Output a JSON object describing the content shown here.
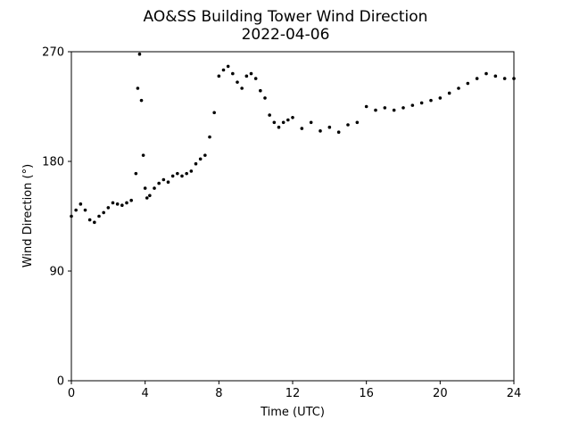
{
  "chart_data": {
    "type": "scatter",
    "title": "AO&SS Building Tower Wind Direction",
    "subtitle": "2022-04-06",
    "xlabel": "Time (UTC)",
    "ylabel": "Wind Direction (°)",
    "xlim": [
      0,
      24
    ],
    "ylim": [
      0,
      270
    ],
    "xticks": [
      0,
      4,
      8,
      12,
      16,
      20,
      24
    ],
    "yticks": [
      0,
      90,
      180,
      270
    ],
    "grid": false,
    "marker_color": "#000000",
    "series": [
      {
        "x": [
          0,
          0.25,
          0.5,
          0.75,
          1,
          1.25,
          1.5,
          1.75,
          2,
          2.25,
          2.5,
          2.75,
          3,
          3.25,
          3.5,
          3.6,
          3.7,
          3.8,
          3.9,
          4,
          4.1,
          4.25,
          4.5,
          4.75,
          5,
          5.25,
          5.5,
          5.75,
          6,
          6.25,
          6.5,
          6.75,
          7,
          7.25,
          7.5,
          7.75,
          8,
          8.25,
          8.5,
          8.75,
          9,
          9.25,
          9.5,
          9.75,
          10,
          10.25,
          10.5,
          10.75,
          11,
          11.25,
          11.5,
          11.75,
          12,
          12.5,
          13,
          13.5,
          14,
          14.5,
          15,
          15.5,
          16,
          16.5,
          17,
          17.5,
          18,
          18.5,
          19,
          19.5,
          20,
          20.5,
          21,
          21.5,
          22,
          22.5,
          23,
          23.5,
          24
        ],
        "y": [
          135,
          140,
          145,
          140,
          132,
          130,
          135,
          138,
          142,
          146,
          145,
          144,
          146,
          148,
          170,
          240,
          268,
          230,
          185,
          158,
          150,
          152,
          158,
          162,
          165,
          163,
          168,
          170,
          168,
          170,
          172,
          178,
          182,
          185,
          200,
          220,
          250,
          255,
          258,
          252,
          245,
          240,
          250,
          252,
          248,
          238,
          232,
          218,
          212,
          208,
          212,
          214,
          216,
          207,
          212,
          205,
          208,
          204,
          210,
          212,
          225,
          222,
          224,
          222,
          224,
          226,
          228,
          230,
          232,
          236,
          240,
          244,
          248,
          252,
          250,
          248,
          248
        ]
      }
    ]
  }
}
